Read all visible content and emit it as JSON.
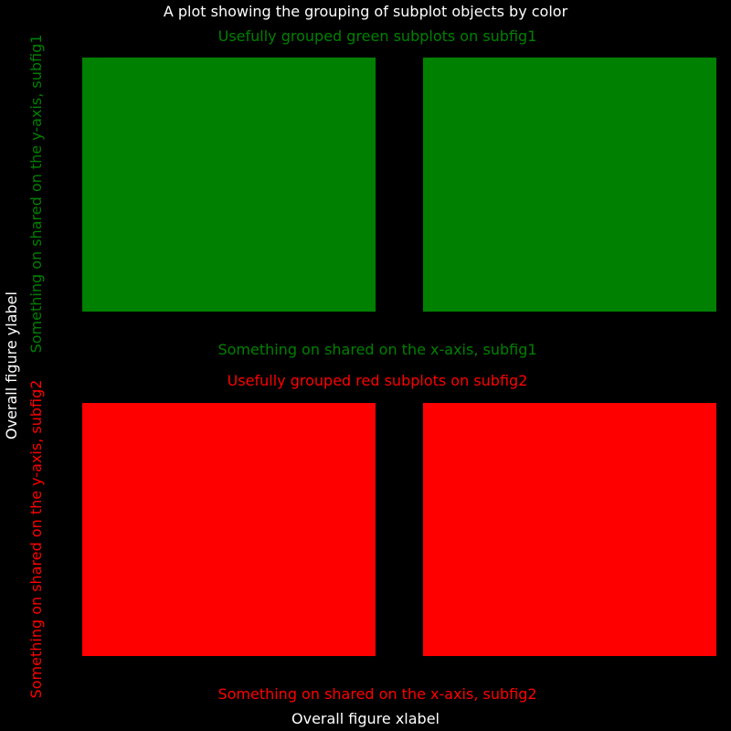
{
  "chart_data": {
    "type": "subfigures",
    "title": "A plot showing the grouping of subplot objects by color",
    "xlabel": "Overall figure xlabel",
    "ylabel": "Overall figure ylabel",
    "background": "#000000",
    "text_color": "#ffffff",
    "subfigures": [
      {
        "id": "subfig1",
        "color": "#008000",
        "title": "Usefully grouped green subplots on subfig1",
        "xlabel": "Something on shared on the x-axis, subfig1",
        "ylabel": "Something on shared on the y-axis, subfig1",
        "panels": 2
      },
      {
        "id": "subfig2",
        "color": "#ff0000",
        "title": "Usefully grouped red subplots on subfig2",
        "xlabel": "Something on shared on the x-axis, subfig2",
        "ylabel": "Something on shared on the y-axis, subfig2",
        "panels": 2
      }
    ]
  }
}
